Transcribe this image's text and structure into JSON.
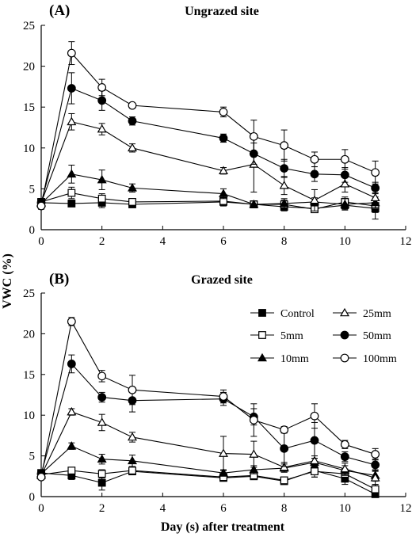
{
  "figure": {
    "ylabel": "VWC (%)",
    "xlabel": "Day (s) after treatment"
  },
  "chart_data": [
    {
      "type": "line",
      "panel": "(A)",
      "title": "Ungrazed site",
      "xlim": [
        0,
        12
      ],
      "ylim": [
        0,
        25
      ],
      "xticks": [
        0,
        2,
        4,
        6,
        8,
        10,
        12
      ],
      "yticks": [
        0,
        5,
        10,
        15,
        20,
        25
      ],
      "x": [
        0,
        1,
        2,
        3,
        6,
        7,
        8,
        9,
        10,
        11
      ],
      "legend": false,
      "series": [
        {
          "name": "Control",
          "marker": "square-filled",
          "values": [
            3.3,
            3.2,
            3.3,
            3.1,
            3.4,
            3.1,
            2.8,
            2.6,
            3.0,
            2.6
          ],
          "errors": [
            0.4,
            0.3,
            0.6,
            0.4,
            0.4,
            0.3,
            0.5,
            0.4,
            0.5,
            0.5
          ]
        },
        {
          "name": "5mm",
          "marker": "square-open",
          "values": [
            3.4,
            4.5,
            3.8,
            3.4,
            3.5,
            3.1,
            3.1,
            2.5,
            3.4,
            2.9
          ],
          "errors": [
            0.4,
            0.7,
            0.6,
            0.4,
            0.6,
            0.4,
            0.5,
            0.4,
            0.6,
            1.6
          ]
        },
        {
          "name": "10mm",
          "marker": "triangle-filled",
          "values": [
            3.2,
            6.8,
            6.1,
            5.1,
            4.4,
            3.1,
            3.2,
            3.4,
            3.1,
            3.3
          ],
          "errors": [
            0.4,
            1.1,
            1.2,
            0.5,
            0.6,
            0.4,
            0.6,
            0.5,
            0.7,
            0.7
          ]
        },
        {
          "name": "25mm",
          "marker": "triangle-open",
          "values": [
            3.3,
            13.2,
            12.3,
            10.0,
            7.2,
            8.0,
            5.4,
            3.6,
            5.6,
            3.9
          ],
          "errors": [
            0.4,
            1.0,
            0.7,
            0.5,
            0.4,
            3.4,
            1.1,
            1.3,
            1.0,
            1.2
          ]
        },
        {
          "name": "50mm",
          "marker": "circle-filled",
          "values": [
            3.3,
            17.3,
            15.8,
            13.3,
            11.2,
            9.3,
            7.5,
            6.8,
            6.7,
            5.1
          ],
          "errors": [
            0.4,
            1.9,
            1.2,
            0.5,
            0.5,
            1.3,
            1.1,
            0.9,
            0.9,
            0.7
          ]
        },
        {
          "name": "100mm",
          "marker": "circle-open",
          "values": [
            2.9,
            21.6,
            17.4,
            15.2,
            14.4,
            11.4,
            10.3,
            8.6,
            8.6,
            7.0
          ],
          "errors": [
            0.4,
            1.4,
            1.0,
            0.3,
            0.6,
            2.0,
            1.9,
            0.9,
            1.2,
            1.4
          ]
        }
      ]
    },
    {
      "type": "line",
      "panel": "(B)",
      "title": "Grazed site",
      "xlim": [
        0,
        12
      ],
      "ylim": [
        0,
        25
      ],
      "xticks": [
        0,
        2,
        4,
        6,
        8,
        10,
        12
      ],
      "yticks": [
        0,
        5,
        10,
        15,
        20,
        25
      ],
      "x": [
        0,
        1,
        2,
        3,
        6,
        7,
        8,
        9,
        10,
        11
      ],
      "legend": true,
      "legend_placement": "upper-right",
      "series": [
        {
          "name": "Control",
          "marker": "square-filled",
          "values": [
            2.9,
            2.6,
            1.7,
            3.1,
            2.3,
            2.5,
            1.9,
            3.2,
            2.2,
            0.3
          ],
          "errors": [
            0.4,
            0.5,
            0.9,
            0.4,
            0.4,
            0.4,
            0.4,
            0.8,
            0.7,
            0.3
          ]
        },
        {
          "name": "5mm",
          "marker": "square-open",
          "values": [
            2.7,
            3.2,
            2.8,
            3.2,
            2.4,
            2.6,
            2.0,
            3.1,
            2.8,
            0.9
          ],
          "errors": [
            0.4,
            0.4,
            0.5,
            0.3,
            0.4,
            0.4,
            0.4,
            0.7,
            0.6,
            0.6
          ]
        },
        {
          "name": "10mm",
          "marker": "triangle-filled",
          "values": [
            2.8,
            6.2,
            4.6,
            4.4,
            2.9,
            3.3,
            3.5,
            4.2,
            3.2,
            2.6
          ],
          "errors": [
            0.4,
            0.4,
            0.6,
            0.7,
            0.4,
            0.5,
            0.5,
            0.5,
            0.6,
            0.7
          ]
        },
        {
          "name": "25mm",
          "marker": "triangle-open",
          "values": [
            2.6,
            10.4,
            9.1,
            7.3,
            5.3,
            5.2,
            3.6,
            4.4,
            3.4,
            2.3
          ],
          "errors": [
            0.4,
            0.4,
            1.0,
            0.6,
            2.1,
            1.6,
            0.6,
            0.6,
            0.7,
            0.8
          ]
        },
        {
          "name": "50mm",
          "marker": "circle-filled",
          "values": [
            2.8,
            16.3,
            12.2,
            11.8,
            12.0,
            9.8,
            5.9,
            6.9,
            4.9,
            3.9
          ],
          "errors": [
            0.4,
            1.1,
            0.6,
            1.4,
            0.8,
            1.0,
            2.2,
            2.2,
            0.6,
            0.7
          ]
        },
        {
          "name": "100mm",
          "marker": "circle-open",
          "values": [
            2.4,
            21.5,
            14.8,
            13.1,
            12.3,
            9.4,
            8.2,
            9.9,
            6.4,
            5.2
          ],
          "errors": [
            0.3,
            0.5,
            0.7,
            1.8,
            0.8,
            2.0,
            0.4,
            1.5,
            0.5,
            0.7
          ]
        }
      ]
    }
  ]
}
